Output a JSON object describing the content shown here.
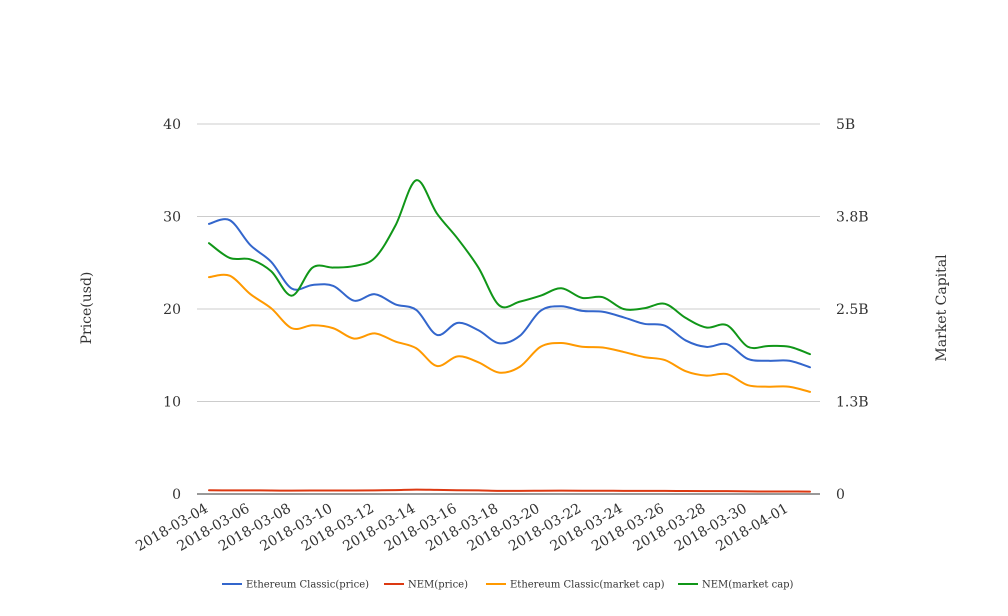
{
  "chart_data": {
    "type": "line",
    "x": [
      "2018-03-04",
      "2018-03-05",
      "2018-03-06",
      "2018-03-07",
      "2018-03-08",
      "2018-03-09",
      "2018-03-10",
      "2018-03-11",
      "2018-03-12",
      "2018-03-13",
      "2018-03-14",
      "2018-03-15",
      "2018-03-16",
      "2018-03-17",
      "2018-03-18",
      "2018-03-19",
      "2018-03-20",
      "2018-03-21",
      "2018-03-22",
      "2018-03-23",
      "2018-03-24",
      "2018-03-25",
      "2018-03-26",
      "2018-03-27",
      "2018-03-28",
      "2018-03-29",
      "2018-03-30",
      "2018-03-31",
      "2018-04-01",
      "2018-04-02"
    ],
    "x_tick_labels": [
      "2018-03-04",
      "2018-03-06",
      "2018-03-08",
      "2018-03-10",
      "2018-03-12",
      "2018-03-14",
      "2018-03-16",
      "2018-03-18",
      "2018-03-20",
      "2018-03-22",
      "2018-03-24",
      "2018-03-26",
      "2018-03-28",
      "2018-03-30",
      "2018-04-01"
    ],
    "left_axis": {
      "label": "Price(usd)",
      "ylim": [
        0,
        40
      ],
      "ticks": [
        0,
        10,
        20,
        30,
        40
      ],
      "tick_labels": [
        "0",
        "10",
        "20",
        "30",
        "40"
      ]
    },
    "right_axis": {
      "label": "Market Capital",
      "ylim": [
        0,
        5000000000
      ],
      "ticks": [
        0,
        1250000000,
        2500000000,
        3750000000,
        5000000000
      ],
      "tick_labels": [
        "0",
        "1.3B",
        "2.5B",
        "3.8B",
        "5B"
      ]
    },
    "grid": true,
    "legend_position": "bottom",
    "series": [
      {
        "name": "Ethereum Classic(price)",
        "axis": "left",
        "color": "#3366cc",
        "values": [
          29.2,
          29.6,
          26.9,
          25.1,
          22.2,
          22.6,
          22.5,
          20.9,
          21.6,
          20.5,
          19.9,
          17.2,
          18.5,
          17.7,
          16.3,
          17.1,
          19.8,
          20.3,
          19.8,
          19.7,
          19.1,
          18.4,
          18.2,
          16.6,
          15.9,
          16.2,
          14.6,
          14.4,
          14.4,
          13.7
        ]
      },
      {
        "name": "NEM(price)",
        "axis": "left",
        "color": "#dc3912",
        "values": [
          0.4,
          0.39,
          0.39,
          0.38,
          0.36,
          0.38,
          0.38,
          0.38,
          0.39,
          0.42,
          0.47,
          0.44,
          0.41,
          0.39,
          0.34,
          0.34,
          0.35,
          0.36,
          0.35,
          0.35,
          0.34,
          0.34,
          0.34,
          0.32,
          0.31,
          0.31,
          0.28,
          0.27,
          0.27,
          0.26
        ]
      },
      {
        "name": "Ethereum Classic(market cap)",
        "axis": "right",
        "color": "#ff9900",
        "values": [
          2930000000,
          2950000000,
          2700000000,
          2510000000,
          2240000000,
          2280000000,
          2240000000,
          2100000000,
          2170000000,
          2060000000,
          1970000000,
          1730000000,
          1860000000,
          1780000000,
          1640000000,
          1720000000,
          1990000000,
          2040000000,
          1990000000,
          1980000000,
          1920000000,
          1850000000,
          1810000000,
          1660000000,
          1600000000,
          1620000000,
          1470000000,
          1450000000,
          1450000000,
          1380000000
        ]
      },
      {
        "name": "NEM(market cap)",
        "axis": "right",
        "color": "#109618",
        "values": [
          3390000000,
          3190000000,
          3170000000,
          3010000000,
          2680000000,
          3060000000,
          3060000000,
          3080000000,
          3190000000,
          3630000000,
          4240000000,
          3790000000,
          3450000000,
          3060000000,
          2550000000,
          2600000000,
          2680000000,
          2780000000,
          2650000000,
          2660000000,
          2500000000,
          2510000000,
          2570000000,
          2380000000,
          2250000000,
          2280000000,
          1990000000,
          2000000000,
          1990000000,
          1890000000
        ]
      }
    ]
  }
}
